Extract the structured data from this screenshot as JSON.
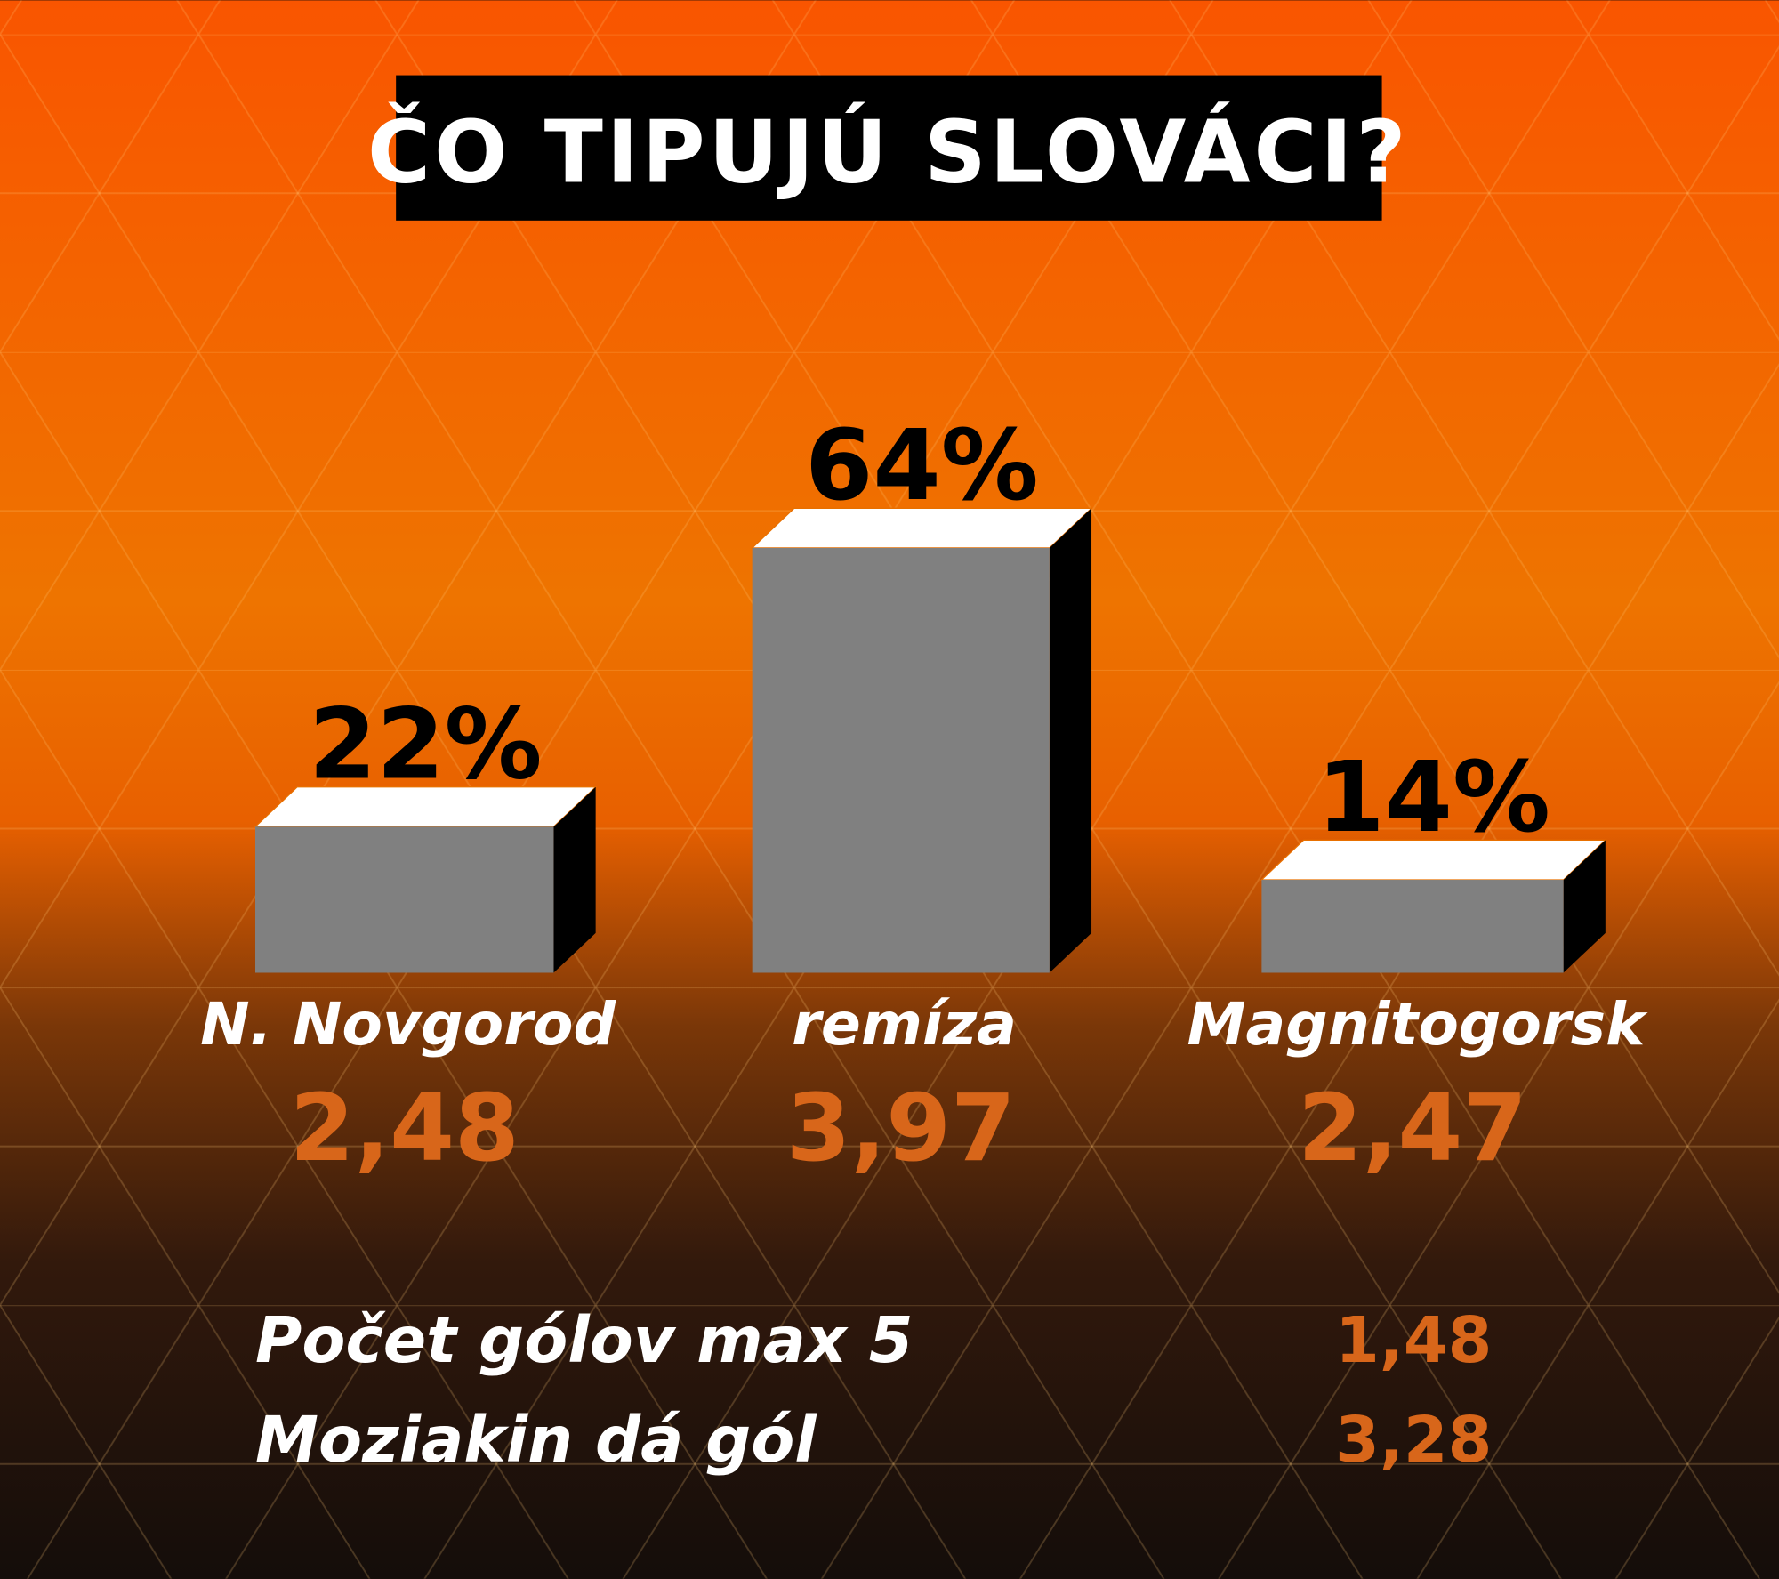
{
  "title": "ČO TIPUJÚ SLOVÁCI?",
  "colors": {
    "bar_front": "#808080",
    "bar_top": "#ffffff",
    "bar_side": "#000000",
    "odds": "#d8661a",
    "bg_top": "#f95a00",
    "bg_bottom": "#140d0a"
  },
  "chart_data": {
    "type": "bar",
    "title": "ČO TIPUJÚ SLOVÁCI?",
    "categories": [
      "N. Novgorod",
      "remíza",
      "Magnitogorsk"
    ],
    "values": [
      22,
      64,
      14
    ],
    "value_labels": [
      "22%",
      "64%",
      "14%"
    ],
    "odds": [
      "2,48",
      "3,97",
      "2,47"
    ],
    "unit": "%",
    "grid": false
  },
  "extras": [
    {
      "label": "Počet gólov max 5",
      "odds": "1,48"
    },
    {
      "label": "Moziakin dá gól",
      "odds": "3,28"
    }
  ]
}
